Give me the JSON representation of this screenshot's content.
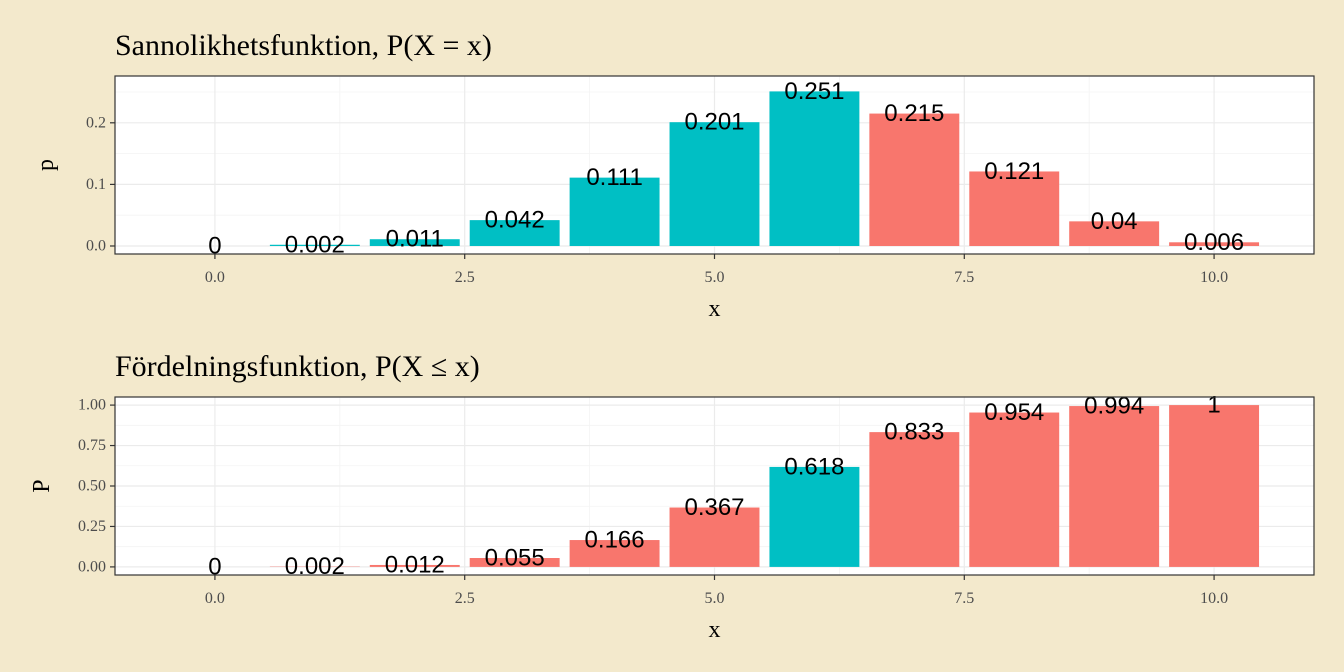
{
  "colors": {
    "page_background": "#f3e9cc",
    "panel_background": "#ffffff",
    "red": "#f8766d",
    "teal": "#00bfc4"
  },
  "chart_data": [
    {
      "type": "bar",
      "title": "Sannolikhetsfunktion, P(X = x)",
      "xlabel": "x",
      "ylabel": "p",
      "x": [
        0,
        1,
        2,
        3,
        4,
        5,
        6,
        7,
        8,
        9,
        10
      ],
      "values": [
        0,
        0.002,
        0.011,
        0.042,
        0.111,
        0.201,
        0.251,
        0.215,
        0.121,
        0.04,
        0.006
      ],
      "labels": [
        "0",
        "0.002",
        "0.011",
        "0.042",
        "0.111",
        "0.201",
        "0.251",
        "0.215",
        "0.121",
        "0.04",
        "0.006"
      ],
      "bar_colors": [
        "teal",
        "teal",
        "teal",
        "teal",
        "teal",
        "teal",
        "teal",
        "red",
        "red",
        "red",
        "red"
      ],
      "x_ticks": [
        0,
        2.5,
        5,
        7.5,
        10
      ],
      "x_tick_labels": [
        "0.0",
        "2.5",
        "5.0",
        "7.5",
        "10.0"
      ],
      "y_ticks": [
        0,
        0.1,
        0.2
      ],
      "y_tick_labels": [
        "0.0",
        "0.1",
        "0.2"
      ],
      "xlim": [
        -1,
        11
      ],
      "ylim": [
        -0.013,
        0.276
      ],
      "grid": true,
      "legend": "none"
    },
    {
      "type": "bar",
      "title": "Fördelningsfunktion, P(X ≤ x)",
      "xlabel": "x",
      "ylabel": "P",
      "x": [
        0,
        1,
        2,
        3,
        4,
        5,
        6,
        7,
        8,
        9,
        10
      ],
      "values": [
        0,
        0.002,
        0.012,
        0.055,
        0.166,
        0.367,
        0.618,
        0.833,
        0.954,
        0.994,
        1
      ],
      "labels": [
        "0",
        "0.002",
        "0.012",
        "0.055",
        "0.166",
        "0.367",
        "0.618",
        "0.833",
        "0.954",
        "0.994",
        "1"
      ],
      "bar_colors": [
        "red",
        "red",
        "red",
        "red",
        "red",
        "red",
        "teal",
        "red",
        "red",
        "red",
        "red"
      ],
      "x_ticks": [
        0,
        2.5,
        5,
        7.5,
        10
      ],
      "x_tick_labels": [
        "0.0",
        "2.5",
        "5.0",
        "7.5",
        "10.0"
      ],
      "y_ticks": [
        0,
        0.25,
        0.5,
        0.75,
        1
      ],
      "y_tick_labels": [
        "0.00",
        "0.25",
        "0.50",
        "0.75",
        "1.00"
      ],
      "xlim": [
        -1,
        11
      ],
      "ylim": [
        -0.05,
        1.05
      ],
      "grid": true,
      "legend": "none"
    }
  ]
}
